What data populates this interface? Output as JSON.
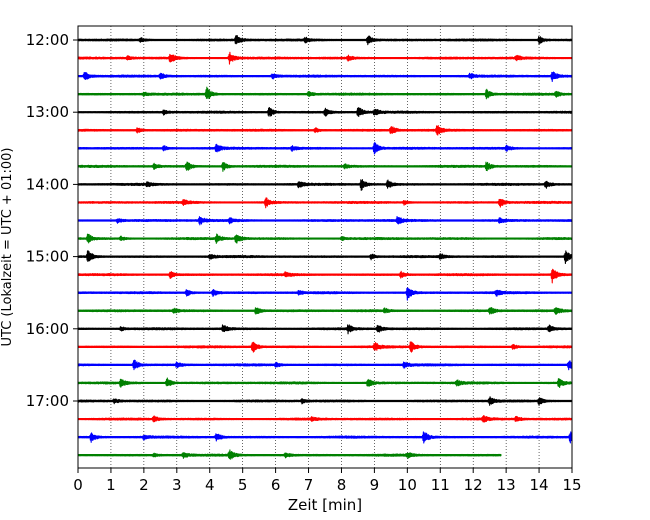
{
  "chart_data": {
    "type": "line",
    "title": "",
    "xlabel": "Zeit  [min]",
    "ylabel": "UTC (Lokalzeit = UTC + 01:00)",
    "xlim": [
      0,
      15
    ],
    "x_ticks": [
      0,
      1,
      2,
      3,
      4,
      5,
      6,
      7,
      8,
      9,
      10,
      11,
      12,
      13,
      14,
      15
    ],
    "y_tick_labels": [
      "12:00",
      "13:00",
      "14:00",
      "15:00",
      "16:00",
      "17:00"
    ],
    "y_tick_rows": [
      0,
      4,
      8,
      12,
      16,
      20
    ],
    "grid": "vertical dotted",
    "legend": "none",
    "row_interval_min": 15,
    "start_time": "12:00",
    "colors": [
      "#000000",
      "#ff0000",
      "#0000ff",
      "#008000"
    ],
    "series": [
      {
        "time": "12:00",
        "color": "#000000",
        "end_min": 15,
        "events": [
          [
            4.8,
            0.6
          ],
          [
            8.8,
            0.6
          ],
          [
            14.0,
            0.45
          ],
          [
            1.9,
            0.25
          ],
          [
            6.9,
            0.25
          ]
        ]
      },
      {
        "time": "12:15",
        "color": "#ff0000",
        "end_min": 15,
        "events": [
          [
            2.8,
            0.6
          ],
          [
            4.6,
            0.65
          ],
          [
            1.5,
            0.25
          ],
          [
            13.3,
            0.3
          ],
          [
            8.2,
            0.25
          ]
        ]
      },
      {
        "time": "12:30",
        "color": "#0000ff",
        "end_min": 15,
        "events": [
          [
            0.2,
            0.5
          ],
          [
            2.5,
            0.35
          ],
          [
            14.4,
            0.55
          ],
          [
            5.9,
            0.3
          ],
          [
            11.9,
            0.3
          ]
        ]
      },
      {
        "time": "12:45",
        "color": "#008000",
        "end_min": 15,
        "events": [
          [
            3.9,
            0.8
          ],
          [
            12.4,
            0.55
          ],
          [
            7.0,
            0.3
          ],
          [
            14.5,
            0.3
          ],
          [
            2.0,
            0.2
          ]
        ]
      },
      {
        "time": "13:00",
        "color": "#000000",
        "end_min": 15,
        "events": [
          [
            5.8,
            0.6
          ],
          [
            8.5,
            0.65
          ],
          [
            7.5,
            0.45
          ],
          [
            9.0,
            0.4
          ],
          [
            2.6,
            0.25
          ]
        ]
      },
      {
        "time": "13:15",
        "color": "#ff0000",
        "end_min": 15,
        "events": [
          [
            9.5,
            0.5
          ],
          [
            10.9,
            0.6
          ],
          [
            1.8,
            0.3
          ],
          [
            7.2,
            0.3
          ]
        ]
      },
      {
        "time": "13:30",
        "color": "#0000ff",
        "end_min": 15,
        "events": [
          [
            9.0,
            0.7
          ],
          [
            4.2,
            0.45
          ],
          [
            2.6,
            0.3
          ],
          [
            13.0,
            0.3
          ],
          [
            6.5,
            0.25
          ]
        ]
      },
      {
        "time": "13:45",
        "color": "#008000",
        "end_min": 15,
        "events": [
          [
            3.3,
            0.55
          ],
          [
            4.4,
            0.5
          ],
          [
            12.4,
            0.5
          ],
          [
            2.3,
            0.3
          ],
          [
            8.1,
            0.25
          ]
        ]
      },
      {
        "time": "14:00",
        "color": "#000000",
        "end_min": 15,
        "events": [
          [
            8.6,
            0.65
          ],
          [
            9.4,
            0.45
          ],
          [
            14.2,
            0.45
          ],
          [
            6.7,
            0.35
          ],
          [
            2.1,
            0.25
          ]
        ]
      },
      {
        "time": "14:15",
        "color": "#ff0000",
        "end_min": 15,
        "events": [
          [
            5.7,
            0.55
          ],
          [
            12.8,
            0.55
          ],
          [
            3.2,
            0.3
          ],
          [
            9.9,
            0.25
          ]
        ]
      },
      {
        "time": "14:30",
        "color": "#0000ff",
        "end_min": 15,
        "events": [
          [
            3.7,
            0.45
          ],
          [
            9.7,
            0.45
          ],
          [
            4.6,
            0.3
          ],
          [
            12.8,
            0.35
          ],
          [
            1.2,
            0.25
          ]
        ]
      },
      {
        "time": "14:45",
        "color": "#008000",
        "end_min": 15,
        "events": [
          [
            0.3,
            0.55
          ],
          [
            4.8,
            0.6
          ],
          [
            4.2,
            0.45
          ],
          [
            1.3,
            0.25
          ],
          [
            8.0,
            0.2
          ]
        ]
      },
      {
        "time": "15:00",
        "color": "#000000",
        "end_min": 15,
        "events": [
          [
            0.3,
            0.75
          ],
          [
            14.8,
            0.7
          ],
          [
            4.0,
            0.3
          ],
          [
            8.9,
            0.35
          ],
          [
            11.0,
            0.3
          ]
        ]
      },
      {
        "time": "15:15",
        "color": "#ff0000",
        "end_min": 15,
        "events": [
          [
            14.4,
            0.85
          ],
          [
            2.8,
            0.45
          ],
          [
            9.8,
            0.35
          ],
          [
            6.3,
            0.25
          ]
        ]
      },
      {
        "time": "15:30",
        "color": "#0000ff",
        "end_min": 15,
        "events": [
          [
            10.0,
            0.75
          ],
          [
            3.3,
            0.45
          ],
          [
            4.1,
            0.4
          ],
          [
            12.7,
            0.35
          ],
          [
            6.7,
            0.25
          ]
        ]
      },
      {
        "time": "15:45",
        "color": "#008000",
        "end_min": 15,
        "events": [
          [
            5.4,
            0.45
          ],
          [
            12.5,
            0.45
          ],
          [
            14.5,
            0.4
          ],
          [
            2.9,
            0.25
          ],
          [
            9.3,
            0.25
          ]
        ]
      },
      {
        "time": "16:00",
        "color": "#000000",
        "end_min": 15,
        "events": [
          [
            4.4,
            0.5
          ],
          [
            9.1,
            0.45
          ],
          [
            8.2,
            0.45
          ],
          [
            14.3,
            0.45
          ],
          [
            1.3,
            0.25
          ]
        ]
      },
      {
        "time": "16:15",
        "color": "#ff0000",
        "end_min": 15,
        "events": [
          [
            5.3,
            0.65
          ],
          [
            10.1,
            0.6
          ],
          [
            9.0,
            0.5
          ],
          [
            13.2,
            0.3
          ]
        ]
      },
      {
        "time": "16:30",
        "color": "#0000ff",
        "end_min": 15,
        "events": [
          [
            1.7,
            0.6
          ],
          [
            14.9,
            0.55
          ],
          [
            3.0,
            0.35
          ],
          [
            9.9,
            0.35
          ],
          [
            6.0,
            0.25
          ]
        ]
      },
      {
        "time": "16:45",
        "color": "#008000",
        "end_min": 15,
        "events": [
          [
            1.3,
            0.5
          ],
          [
            2.7,
            0.55
          ],
          [
            8.8,
            0.5
          ],
          [
            14.6,
            0.55
          ],
          [
            11.5,
            0.3
          ]
        ]
      },
      {
        "time": "17:00",
        "color": "#000000",
        "end_min": 15,
        "events": [
          [
            12.5,
            0.5
          ],
          [
            14.0,
            0.45
          ],
          [
            1.1,
            0.25
          ],
          [
            6.8,
            0.25
          ]
        ]
      },
      {
        "time": "17:15",
        "color": "#ff0000",
        "end_min": 15,
        "events": [
          [
            2.3,
            0.3
          ],
          [
            12.3,
            0.4
          ],
          [
            13.3,
            0.3
          ],
          [
            7.1,
            0.2
          ]
        ]
      },
      {
        "time": "17:30",
        "color": "#0000ff",
        "end_min": 15,
        "events": [
          [
            0.4,
            0.5
          ],
          [
            4.2,
            0.5
          ],
          [
            10.5,
            0.65
          ],
          [
            14.95,
            0.7
          ],
          [
            2.0,
            0.25
          ]
        ]
      },
      {
        "time": "17:45",
        "color": "#008000",
        "end_min": 12.85,
        "events": [
          [
            4.6,
            0.55
          ],
          [
            3.2,
            0.3
          ],
          [
            6.3,
            0.3
          ],
          [
            10.0,
            0.3
          ],
          [
            2.3,
            0.2
          ]
        ]
      }
    ]
  }
}
